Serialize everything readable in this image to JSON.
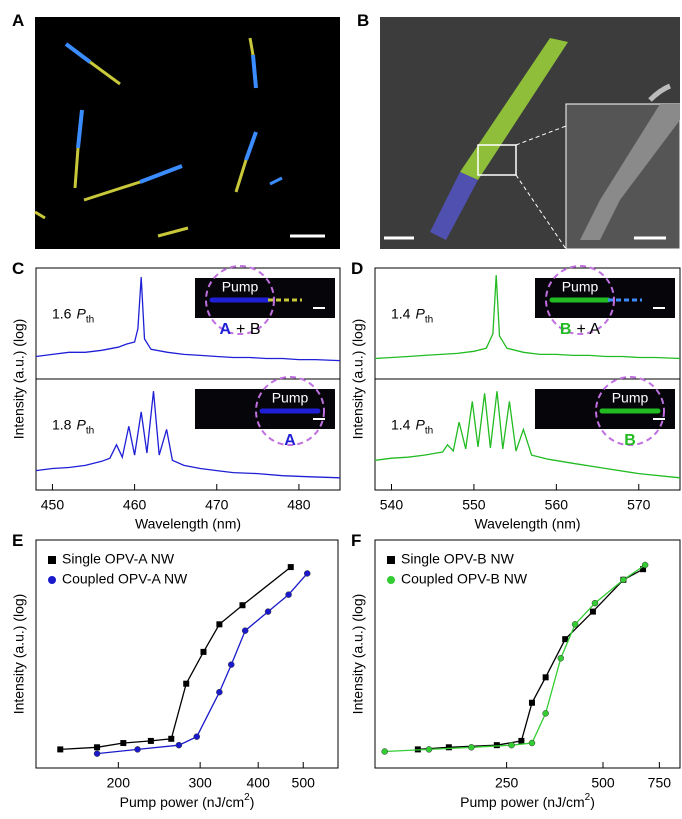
{
  "images": [
    {
      "panel": "A"
    },
    {
      "panel": "B"
    }
  ],
  "chart_data": [
    {
      "panel": "C",
      "type": "line",
      "color": "#1f1fd6",
      "xlabel": "Wavelength (nm)",
      "ylabel": "Intensity (a.u.) (log)",
      "xlim": [
        448,
        485
      ],
      "xticks": [
        450,
        460,
        470,
        480
      ],
      "ylim": [
        0,
        1
      ],
      "subplots": [
        {
          "x": [
            448,
            450,
            452,
            454,
            456,
            458,
            459,
            460,
            460.4,
            460.8,
            461.2,
            462,
            464,
            466,
            468,
            470,
            472,
            474,
            476,
            478,
            480,
            482,
            485
          ],
          "values": [
            0.18,
            0.2,
            0.22,
            0.22,
            0.24,
            0.27,
            0.3,
            0.32,
            0.45,
            0.95,
            0.35,
            0.25,
            0.22,
            0.2,
            0.19,
            0.18,
            0.17,
            0.17,
            0.16,
            0.16,
            0.15,
            0.15,
            0.14
          ],
          "annotation": {
            "value": "1.6",
            "var": "P",
            "sub": "th"
          },
          "inset": {
            "pump": "Pump",
            "tag": "A",
            "rest": "+ B"
          }
        },
        {
          "x": [
            448,
            450,
            452,
            454,
            456,
            457,
            457.8,
            458.5,
            459.3,
            460,
            460.8,
            461.5,
            462.3,
            463,
            463.9,
            464.6,
            466,
            468,
            470,
            472,
            475,
            478,
            481,
            485
          ],
          "values": [
            0.15,
            0.17,
            0.18,
            0.2,
            0.24,
            0.27,
            0.4,
            0.28,
            0.58,
            0.3,
            0.72,
            0.32,
            0.92,
            0.3,
            0.55,
            0.25,
            0.2,
            0.17,
            0.15,
            0.13,
            0.12,
            0.1,
            0.09,
            0.08
          ],
          "annotation": {
            "value": "1.8",
            "var": "P",
            "sub": "th"
          },
          "inset": {
            "pump": "Pump",
            "tag": "A",
            "rest": ""
          }
        }
      ]
    },
    {
      "panel": "D",
      "type": "line",
      "color": "#22bb22",
      "xlabel": "Wavelength (nm)",
      "ylabel": "Intensity (a.u.) (log)",
      "xlim": [
        538,
        575
      ],
      "xticks": [
        540,
        550,
        560,
        570
      ],
      "ylim": [
        0,
        1
      ],
      "subplots": [
        {
          "x": [
            538,
            540,
            542,
            544,
            546,
            548,
            550,
            551.5,
            552.3,
            552.7,
            553.1,
            554,
            556,
            558,
            560,
            562,
            564,
            566,
            568,
            570,
            572,
            575
          ],
          "values": [
            0.16,
            0.17,
            0.18,
            0.19,
            0.2,
            0.21,
            0.23,
            0.26,
            0.4,
            0.97,
            0.38,
            0.26,
            0.22,
            0.2,
            0.2,
            0.19,
            0.19,
            0.18,
            0.18,
            0.17,
            0.17,
            0.16
          ],
          "annotation": {
            "value": "1.4",
            "var": "P",
            "sub": "th"
          },
          "inset": {
            "pump": "Pump",
            "tag": "B",
            "rest": "+ A"
          }
        },
        {
          "x": [
            538,
            540,
            542,
            544,
            545.5,
            546.2,
            546.8,
            547.5,
            548.2,
            549,
            549.8,
            550.5,
            551.3,
            552,
            552.8,
            553.5,
            554.3,
            555.1,
            556,
            557,
            559,
            562,
            566,
            570,
            575
          ],
          "values": [
            0.25,
            0.27,
            0.28,
            0.3,
            0.32,
            0.33,
            0.4,
            0.34,
            0.62,
            0.36,
            0.82,
            0.38,
            0.9,
            0.37,
            0.92,
            0.36,
            0.82,
            0.34,
            0.55,
            0.3,
            0.26,
            0.22,
            0.17,
            0.12,
            0.08
          ],
          "annotation": {
            "value": "1.4",
            "var": "P",
            "sub": "th"
          },
          "inset": {
            "pump": "Pump",
            "tag": "B",
            "rest": ""
          }
        }
      ]
    },
    {
      "panel": "E",
      "type": "scatter",
      "xscale": "log",
      "legend": "upper left",
      "xlabel": {
        "text": "Pump power (nJ/cm",
        "sup": "2",
        "end": ")"
      },
      "ylabel": "Intensity (a.u.) (log)",
      "xlim": [
        133,
        594
      ],
      "xticks": [
        200,
        300,
        400,
        500
      ],
      "ylim": [
        0,
        1
      ],
      "series": [
        {
          "name": "Single OPV-A NW",
          "color": "#000000",
          "marker": "square",
          "x": [
            150,
            180,
            205,
            235,
            260,
            280,
            305,
            330,
            370,
            470
          ],
          "values": [
            0.05,
            0.06,
            0.08,
            0.09,
            0.1,
            0.36,
            0.51,
            0.64,
            0.73,
            0.91
          ]
        },
        {
          "name": "Coupled OPV-A NW",
          "color": "#1a1acc",
          "marker": "circle",
          "x": [
            180,
            220,
            270,
            295,
            330,
            350,
            375,
            420,
            465,
            510
          ],
          "values": [
            0.03,
            0.05,
            0.07,
            0.11,
            0.32,
            0.45,
            0.61,
            0.7,
            0.78,
            0.88
          ]
        }
      ]
    },
    {
      "panel": "F",
      "type": "scatter",
      "xscale": "log",
      "legend": "upper left",
      "xlabel": {
        "text": "Pump power (nJ/cm",
        "sup": "2",
        "end": ")"
      },
      "ylabel": "Intensity (a.u.) (log)",
      "xlim": [
        97,
        870
      ],
      "xticks": [
        250,
        500,
        750
      ],
      "ylim": [
        0,
        1
      ],
      "series": [
        {
          "name": "Single OPV-B NW",
          "color": "#000000",
          "marker": "square",
          "x": [
            132,
            165,
            233,
            278,
            300,
            331,
            381,
            465,
            579,
            667
          ],
          "values": [
            0.05,
            0.06,
            0.07,
            0.09,
            0.27,
            0.39,
            0.57,
            0.7,
            0.85,
            0.9
          ]
        },
        {
          "name": "Coupled OPV-B NW",
          "color": "#33cc33",
          "marker": "circle",
          "x": [
            104,
            143,
            194,
            259,
            300,
            331,
            369,
            409,
            472,
            579,
            677
          ],
          "values": [
            0.04,
            0.05,
            0.06,
            0.07,
            0.08,
            0.22,
            0.48,
            0.64,
            0.74,
            0.85,
            0.92
          ]
        }
      ]
    }
  ]
}
